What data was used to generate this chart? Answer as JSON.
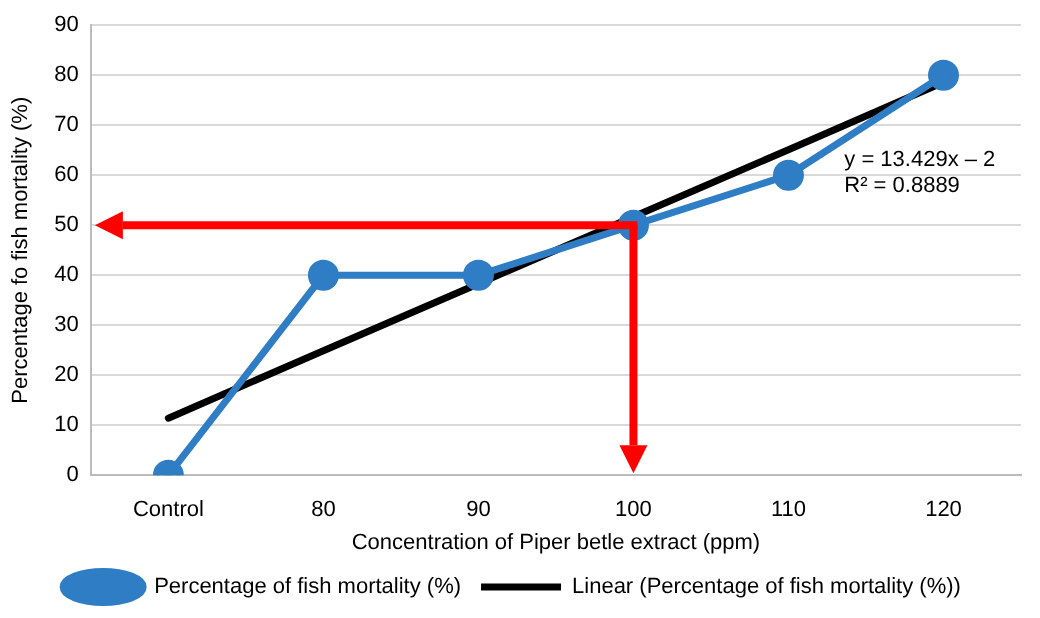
{
  "chart_data": {
    "type": "line",
    "xlabel": "Concentration of Piper betle extract (ppm)",
    "ylabel": "Percentage fo fish mortality (%)",
    "categories": [
      "Control",
      "80",
      "90",
      "100",
      "110",
      "120"
    ],
    "series": [
      {
        "name": "Percentage of fish mortality (%)",
        "color": "#2f7dc4",
        "values": [
          0,
          40,
          40,
          50,
          60,
          80
        ],
        "marker": "circle"
      },
      {
        "name": "Linear (Percentage of fish mortality (%))",
        "color": "#000000",
        "values": [
          11.4,
          24.9,
          38.3,
          51.7,
          65.1,
          78.6
        ],
        "marker": "none"
      }
    ],
    "ylim": [
      0,
      90
    ],
    "yticks": [
      0,
      10,
      20,
      30,
      40,
      50,
      60,
      70,
      80,
      90
    ],
    "grid": "y",
    "legend": "bottom",
    "ref_lines": [
      {
        "axis": "y",
        "value": 50,
        "color": "#ff0000"
      },
      {
        "axis": "x",
        "value": "100",
        "color": "#ff0000"
      }
    ],
    "annotations": [
      "y = 13.429x – 2",
      "R² = 0.8889"
    ]
  }
}
